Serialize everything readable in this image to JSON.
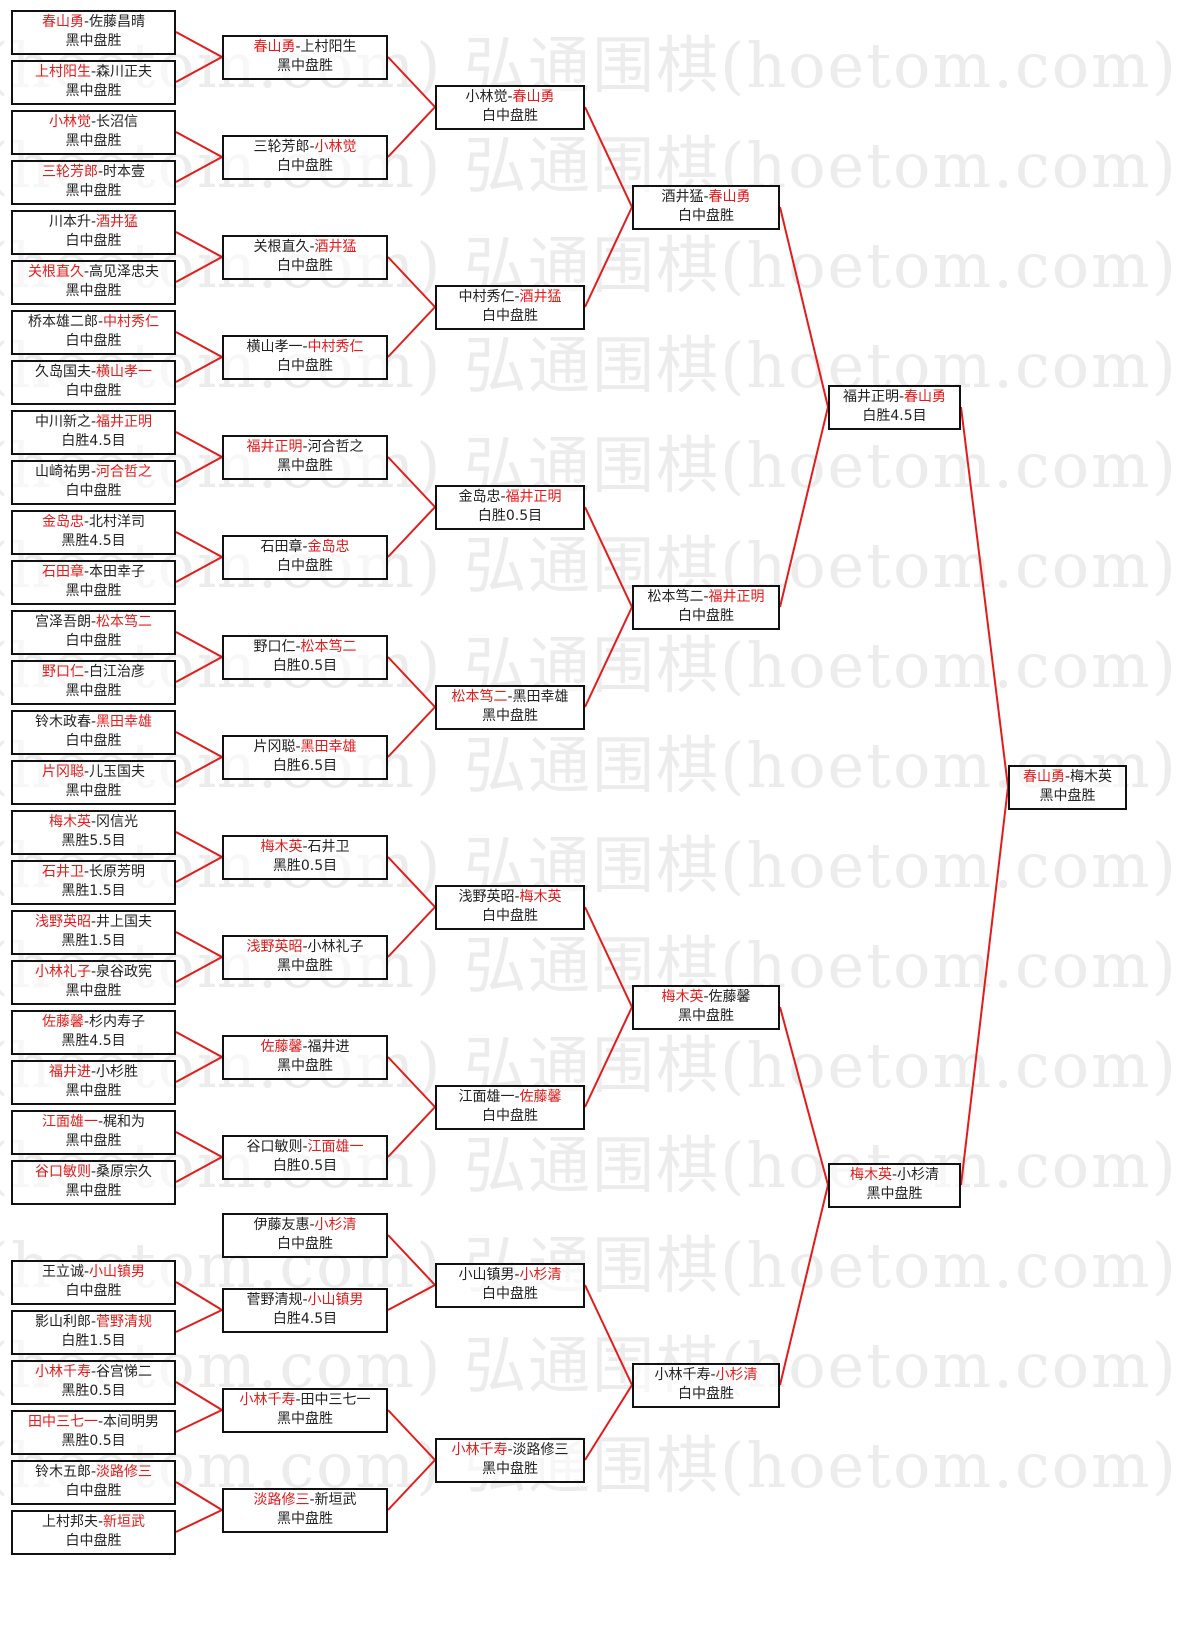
{
  "watermark": "弘通围棋(hoetom.com)",
  "colors": {
    "winner": "#e31b1b",
    "line": "#e31b1b",
    "border": "#111111"
  },
  "rounds": [
    [
      {
        "a": "春山勇",
        "b": "佐藤昌晴",
        "winner": "a",
        "result": "黑中盘胜"
      },
      {
        "a": "上村阳生",
        "b": "森川正夫",
        "winner": "a",
        "result": "黑中盘胜"
      },
      {
        "a": "小林觉",
        "b": "长沼信",
        "winner": "a",
        "result": "黑中盘胜"
      },
      {
        "a": "三轮芳郎",
        "b": "时本壹",
        "winner": "a",
        "result": "黑中盘胜"
      },
      {
        "a": "川本升",
        "b": "酒井猛",
        "winner": "b",
        "result": "白中盘胜"
      },
      {
        "a": "关根直久",
        "b": "高见泽忠夫",
        "winner": "a",
        "result": "黑中盘胜"
      },
      {
        "a": "桥本雄二郎",
        "b": "中村秀仁",
        "winner": "b",
        "result": "白中盘胜"
      },
      {
        "a": "久岛国夫",
        "b": "横山孝一",
        "winner": "b",
        "result": "白中盘胜"
      },
      {
        "a": "中川新之",
        "b": "福井正明",
        "winner": "b",
        "result": "白胜4.5目"
      },
      {
        "a": "山崎祐男",
        "b": "河合哲之",
        "winner": "b",
        "result": "白中盘胜"
      },
      {
        "a": "金岛忠",
        "b": "北村洋司",
        "winner": "a",
        "result": "黑胜4.5目"
      },
      {
        "a": "石田章",
        "b": "本田幸子",
        "winner": "a",
        "result": "黑中盘胜"
      },
      {
        "a": "宫泽吾朗",
        "b": "松本笃二",
        "winner": "b",
        "result": "白中盘胜"
      },
      {
        "a": "野口仁",
        "b": "白江治彦",
        "winner": "a",
        "result": "黑中盘胜"
      },
      {
        "a": "铃木政春",
        "b": "黑田幸雄",
        "winner": "b",
        "result": "白中盘胜"
      },
      {
        "a": "片冈聪",
        "b": "儿玉国夫",
        "winner": "a",
        "result": "黑中盘胜"
      },
      {
        "a": "梅木英",
        "b": "冈信光",
        "winner": "a",
        "result": "黑胜5.5目"
      },
      {
        "a": "石井卫",
        "b": "长原芳明",
        "winner": "a",
        "result": "黑胜1.5目"
      },
      {
        "a": "浅野英昭",
        "b": "井上国夫",
        "winner": "a",
        "result": "黑胜1.5目"
      },
      {
        "a": "小林礼子",
        "b": "泉谷政宪",
        "winner": "a",
        "result": "黑中盘胜"
      },
      {
        "a": "佐藤馨",
        "b": "杉内寿子",
        "winner": "a",
        "result": "黑胜4.5目"
      },
      {
        "a": "福井进",
        "b": "小杉胜",
        "winner": "a",
        "result": "黑中盘胜"
      },
      {
        "a": "江面雄一",
        "b": "梶和为",
        "winner": "a",
        "result": "黑中盘胜"
      },
      {
        "a": "谷口敏则",
        "b": "桑原宗久",
        "winner": "a",
        "result": "黑中盘胜"
      },
      {
        "a": "王立诚",
        "b": "小山镇男",
        "winner": "b",
        "result": "白中盘胜"
      },
      {
        "a": "影山利郎",
        "b": "菅野清规",
        "winner": "b",
        "result": "白胜1.5目"
      },
      {
        "a": "小林千寿",
        "b": "谷宫悌二",
        "winner": "a",
        "result": "黑胜0.5目"
      },
      {
        "a": "田中三七一",
        "b": "本间明男",
        "winner": "a",
        "result": "黑胜0.5目"
      },
      {
        "a": "铃木五郎",
        "b": "淡路修三",
        "winner": "b",
        "result": "白中盘胜"
      },
      {
        "a": "上村邦夫",
        "b": "新垣武",
        "winner": "b",
        "result": "白中盘胜"
      }
    ],
    [
      {
        "a": "春山勇",
        "b": "上村阳生",
        "winner": "a",
        "result": "黑中盘胜"
      },
      {
        "a": "三轮芳郎",
        "b": "小林觉",
        "winner": "b",
        "result": "白中盘胜"
      },
      {
        "a": "关根直久",
        "b": "酒井猛",
        "winner": "b",
        "result": "白中盘胜"
      },
      {
        "a": "横山孝一",
        "b": "中村秀仁",
        "winner": "b",
        "result": "白中盘胜"
      },
      {
        "a": "福井正明",
        "b": "河合哲之",
        "winner": "a",
        "result": "黑中盘胜"
      },
      {
        "a": "石田章",
        "b": "金岛忠",
        "winner": "b",
        "result": "白中盘胜"
      },
      {
        "a": "野口仁",
        "b": "松本笃二",
        "winner": "b",
        "result": "白胜0.5目"
      },
      {
        "a": "片冈聪",
        "b": "黑田幸雄",
        "winner": "b",
        "result": "白胜6.5目"
      },
      {
        "a": "梅木英",
        "b": "石井卫",
        "winner": "a",
        "result": "黑胜0.5目"
      },
      {
        "a": "浅野英昭",
        "b": "小林礼子",
        "winner": "a",
        "result": "黑中盘胜"
      },
      {
        "a": "佐藤馨",
        "b": "福井进",
        "winner": "a",
        "result": "黑中盘胜"
      },
      {
        "a": "谷口敏则",
        "b": "江面雄一",
        "winner": "b",
        "result": "白胜0.5目"
      },
      {
        "a": "伊藤友惠",
        "b": "小杉清",
        "winner": "b",
        "result": "白中盘胜"
      },
      {
        "a": "菅野清规",
        "b": "小山镇男",
        "winner": "b",
        "result": "白胜4.5目"
      },
      {
        "a": "小林千寿",
        "b": "田中三七一",
        "winner": "a",
        "result": "黑中盘胜"
      },
      {
        "a": "淡路修三",
        "b": "新垣武",
        "winner": "a",
        "result": "黑中盘胜"
      }
    ],
    [
      {
        "a": "小林觉",
        "b": "春山勇",
        "winner": "b",
        "result": "白中盘胜"
      },
      {
        "a": "中村秀仁",
        "b": "酒井猛",
        "winner": "b",
        "result": "白中盘胜"
      },
      {
        "a": "金岛忠",
        "b": "福井正明",
        "winner": "b",
        "result": "白胜0.5目"
      },
      {
        "a": "松本笃二",
        "b": "黑田幸雄",
        "winner": "a",
        "result": "黑中盘胜"
      },
      {
        "a": "浅野英昭",
        "b": "梅木英",
        "winner": "b",
        "result": "白中盘胜"
      },
      {
        "a": "江面雄一",
        "b": "佐藤馨",
        "winner": "b",
        "result": "白中盘胜"
      },
      {
        "a": "小山镇男",
        "b": "小杉清",
        "winner": "b",
        "result": "白中盘胜"
      },
      {
        "a": "小林千寿",
        "b": "淡路修三",
        "winner": "a",
        "result": "黑中盘胜"
      }
    ],
    [
      {
        "a": "酒井猛",
        "b": "春山勇",
        "winner": "b",
        "result": "白中盘胜"
      },
      {
        "a": "松本笃二",
        "b": "福井正明",
        "winner": "b",
        "result": "白中盘胜"
      },
      {
        "a": "梅木英",
        "b": "佐藤馨",
        "winner": "a",
        "result": "黑中盘胜"
      },
      {
        "a": "小林千寿",
        "b": "小杉清",
        "winner": "b",
        "result": "白中盘胜"
      }
    ],
    [
      {
        "a": "福井正明",
        "b": "春山勇",
        "winner": "b",
        "result": "白胜4.5目"
      },
      {
        "a": "梅木英",
        "b": "小杉清",
        "winner": "a",
        "result": "黑中盘胜"
      }
    ],
    [
      {
        "a": "春山勇",
        "b": "梅木英",
        "winner": "a",
        "result": "黑中盘胜"
      }
    ]
  ]
}
